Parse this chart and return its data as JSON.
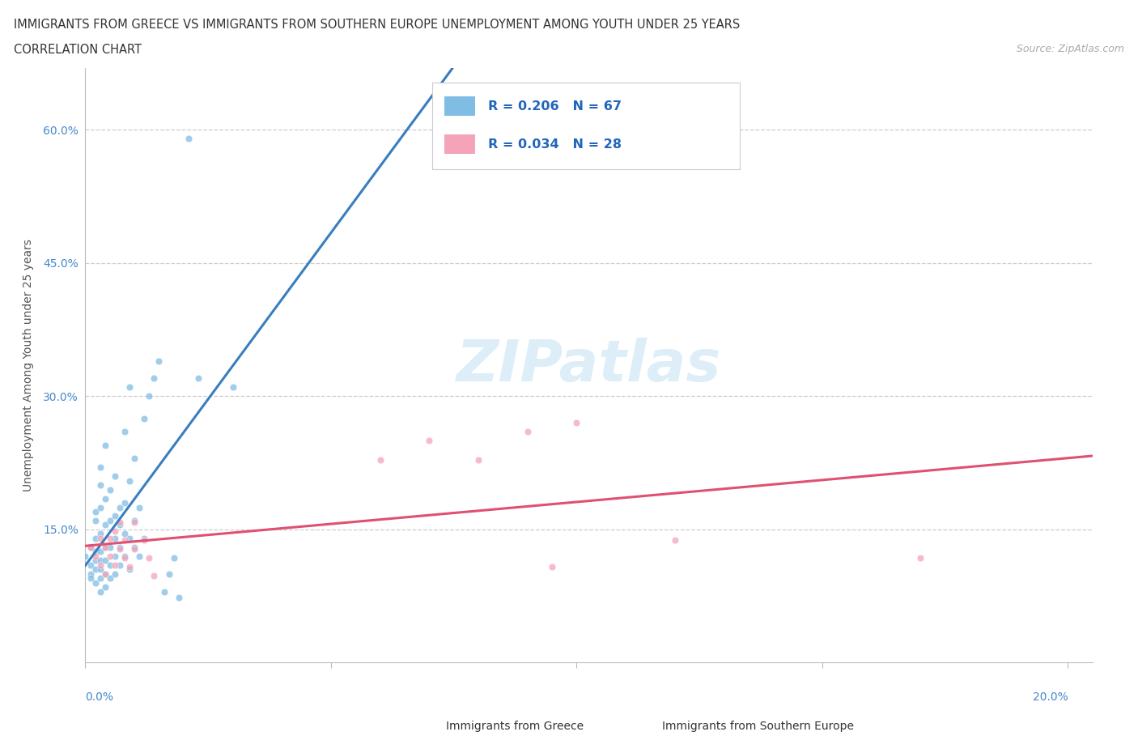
{
  "title_line1": "IMMIGRANTS FROM GREECE VS IMMIGRANTS FROM SOUTHERN EUROPE UNEMPLOYMENT AMONG YOUTH UNDER 25 YEARS",
  "title_line2": "CORRELATION CHART",
  "source_text": "Source: ZipAtlas.com",
  "ylabel": "Unemployment Among Youth under 25 years",
  "xmin": 0.0,
  "xmax": 0.205,
  "ymin": 0.0,
  "ymax": 0.67,
  "ytick_vals": [
    0.15,
    0.3,
    0.45,
    0.6
  ],
  "ytick_labels": [
    "15.0%",
    "30.0%",
    "45.0%",
    "60.0%"
  ],
  "xtick_label_left": "0.0%",
  "xtick_label_right": "20.0%",
  "greece_R": 0.206,
  "greece_N": 67,
  "southern_R": 0.034,
  "southern_N": 28,
  "greece_color": "#7fbde4",
  "southern_color": "#f4a3b8",
  "greece_line_color": "#3a7ebf",
  "southern_line_color": "#e05070",
  "dash_color": "#b0c8d8",
  "watermark": "ZIPatlas",
  "legend_border": "#cccccc",
  "greece_scatter": [
    [
      0.0,
      0.12
    ],
    [
      0.001,
      0.1
    ],
    [
      0.001,
      0.11
    ],
    [
      0.001,
      0.13
    ],
    [
      0.001,
      0.095
    ],
    [
      0.002,
      0.09
    ],
    [
      0.002,
      0.105
    ],
    [
      0.002,
      0.115
    ],
    [
      0.002,
      0.125
    ],
    [
      0.002,
      0.14
    ],
    [
      0.002,
      0.16
    ],
    [
      0.002,
      0.17
    ],
    [
      0.003,
      0.08
    ],
    [
      0.003,
      0.095
    ],
    [
      0.003,
      0.105
    ],
    [
      0.003,
      0.115
    ],
    [
      0.003,
      0.125
    ],
    [
      0.003,
      0.145
    ],
    [
      0.003,
      0.175
    ],
    [
      0.003,
      0.2
    ],
    [
      0.003,
      0.22
    ],
    [
      0.004,
      0.085
    ],
    [
      0.004,
      0.1
    ],
    [
      0.004,
      0.115
    ],
    [
      0.004,
      0.13
    ],
    [
      0.004,
      0.155
    ],
    [
      0.004,
      0.185
    ],
    [
      0.004,
      0.245
    ],
    [
      0.005,
      0.095
    ],
    [
      0.005,
      0.11
    ],
    [
      0.005,
      0.13
    ],
    [
      0.005,
      0.16
    ],
    [
      0.005,
      0.195
    ],
    [
      0.006,
      0.1
    ],
    [
      0.006,
      0.12
    ],
    [
      0.006,
      0.14
    ],
    [
      0.006,
      0.165
    ],
    [
      0.006,
      0.21
    ],
    [
      0.007,
      0.11
    ],
    [
      0.007,
      0.13
    ],
    [
      0.007,
      0.155
    ],
    [
      0.007,
      0.175
    ],
    [
      0.008,
      0.12
    ],
    [
      0.008,
      0.145
    ],
    [
      0.008,
      0.18
    ],
    [
      0.008,
      0.26
    ],
    [
      0.009,
      0.105
    ],
    [
      0.009,
      0.14
    ],
    [
      0.009,
      0.205
    ],
    [
      0.009,
      0.31
    ],
    [
      0.01,
      0.13
    ],
    [
      0.01,
      0.16
    ],
    [
      0.01,
      0.23
    ],
    [
      0.011,
      0.12
    ],
    [
      0.011,
      0.175
    ],
    [
      0.012,
      0.14
    ],
    [
      0.012,
      0.275
    ],
    [
      0.013,
      0.3
    ],
    [
      0.014,
      0.32
    ],
    [
      0.015,
      0.34
    ],
    [
      0.016,
      0.08
    ],
    [
      0.017,
      0.1
    ],
    [
      0.018,
      0.118
    ],
    [
      0.019,
      0.073
    ],
    [
      0.021,
      0.59
    ],
    [
      0.023,
      0.32
    ],
    [
      0.03,
      0.31
    ]
  ],
  "southern_scatter": [
    [
      0.001,
      0.13
    ],
    [
      0.002,
      0.12
    ],
    [
      0.003,
      0.14
    ],
    [
      0.003,
      0.11
    ],
    [
      0.004,
      0.13
    ],
    [
      0.004,
      0.1
    ],
    [
      0.005,
      0.12
    ],
    [
      0.005,
      0.14
    ],
    [
      0.006,
      0.11
    ],
    [
      0.006,
      0.148
    ],
    [
      0.007,
      0.128
    ],
    [
      0.007,
      0.158
    ],
    [
      0.008,
      0.118
    ],
    [
      0.008,
      0.138
    ],
    [
      0.009,
      0.108
    ],
    [
      0.01,
      0.128
    ],
    [
      0.01,
      0.158
    ],
    [
      0.012,
      0.138
    ],
    [
      0.013,
      0.118
    ],
    [
      0.014,
      0.098
    ],
    [
      0.06,
      0.228
    ],
    [
      0.07,
      0.25
    ],
    [
      0.08,
      0.228
    ],
    [
      0.09,
      0.26
    ],
    [
      0.095,
      0.108
    ],
    [
      0.1,
      0.27
    ],
    [
      0.12,
      0.138
    ],
    [
      0.17,
      0.118
    ]
  ]
}
